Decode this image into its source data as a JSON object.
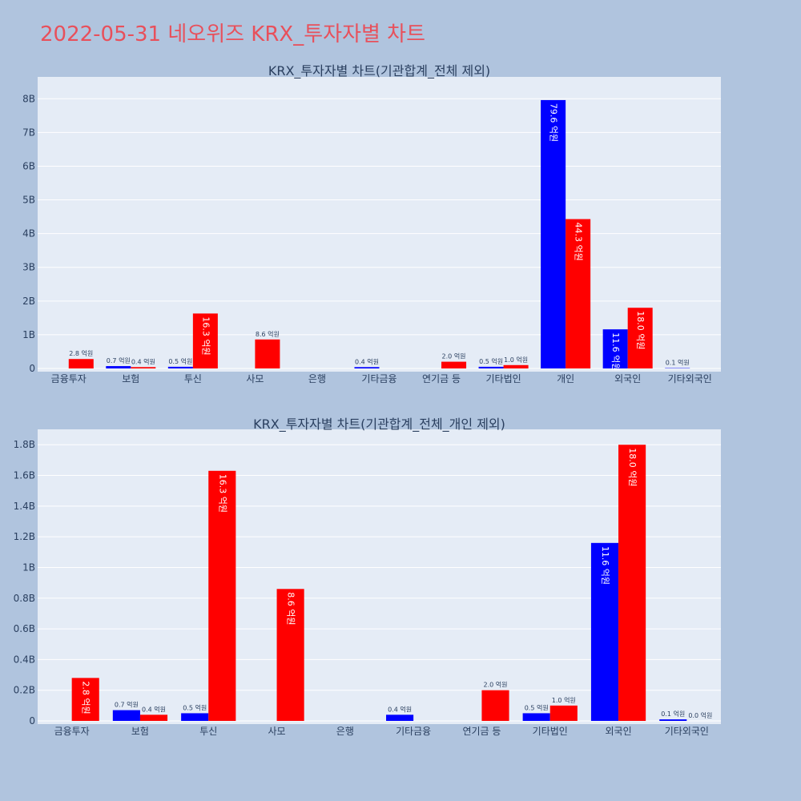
{
  "page_title": "2022-05-31 네오위즈 KRX_투자자별 차트",
  "colors": {
    "background": "#b0c4de",
    "plot_bg": "#e5ecf6",
    "grid": "#ffffff",
    "title": "#e8505b",
    "text": "#2a3f5f"
  },
  "chart_data": [
    {
      "type": "bar",
      "title": "KRX_투자자별 차트(기관합계_전체 제외)",
      "categories": [
        "금융투자",
        "보험",
        "투신",
        "사모",
        "은행",
        "기타금융",
        "연기금 등",
        "기타법인",
        "개인",
        "외국인",
        "기타외국인"
      ],
      "y_ticks": [
        "0",
        "1B",
        "2B",
        "3B",
        "4B",
        "5B",
        "6B",
        "7B",
        "8B"
      ],
      "ylim": [
        0,
        8.6
      ],
      "series": [
        {
          "color": "#0000ff",
          "values": [
            null,
            0.07,
            0.05,
            null,
            null,
            0.04,
            null,
            0.05,
            7.96,
            1.16,
            0.01
          ],
          "labels": [
            null,
            "0.7 억원",
            "0.5 억원",
            null,
            null,
            "0.4 억원",
            null,
            "0.5 억원",
            "79.6 억원",
            "11.6 억원",
            "0.1 억원"
          ]
        },
        {
          "color": "#ff0000",
          "values": [
            0.28,
            0.04,
            1.63,
            0.86,
            null,
            null,
            0.2,
            0.1,
            4.43,
            1.8,
            null
          ],
          "labels": [
            "2.8 억원",
            "0.4 억원",
            "16.3 억원",
            "8.6 억원",
            null,
            null,
            "2.0 억원",
            "1.0 억원",
            "44.3 억원",
            "18.0 억원",
            null
          ]
        }
      ]
    },
    {
      "type": "bar",
      "title": "KRX_투자자별 차트(기관합계_전체_개인 제외)",
      "categories": [
        "금융투자",
        "보험",
        "투신",
        "사모",
        "은행",
        "기타금융",
        "연기금 등",
        "기타법인",
        "외국인",
        "기타외국인"
      ],
      "y_ticks": [
        "0",
        "0.2B",
        "0.4B",
        "0.6B",
        "0.8B",
        "1B",
        "1.2B",
        "1.4B",
        "1.6B",
        "1.8B"
      ],
      "ylim": [
        0,
        1.89
      ],
      "series": [
        {
          "color": "#0000ff",
          "values": [
            null,
            0.07,
            0.05,
            null,
            null,
            0.04,
            null,
            0.05,
            1.16,
            0.01
          ],
          "labels": [
            null,
            "0.7 억원",
            "0.5 억원",
            null,
            null,
            "0.4 억원",
            null,
            "0.5 억원",
            "11.6 억원",
            "0.1 억원"
          ]
        },
        {
          "color": "#ff0000",
          "values": [
            0.28,
            0.04,
            1.63,
            0.86,
            null,
            null,
            0.2,
            0.1,
            1.8,
            0.0
          ],
          "labels": [
            "2.8 억원",
            "0.4 억원",
            "16.3 억원",
            "8.6 억원",
            null,
            null,
            "2.0 억원",
            "1.0 억원",
            "18.0 억원",
            "0.0 억원"
          ]
        }
      ]
    }
  ]
}
